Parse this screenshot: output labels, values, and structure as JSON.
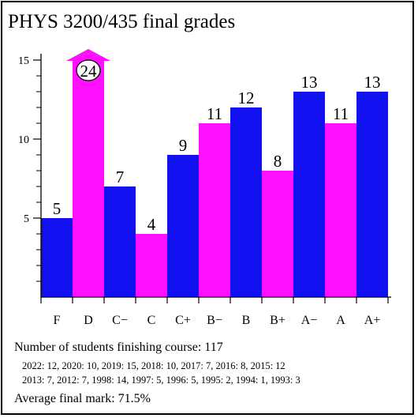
{
  "title": "PHYS 3200/435 final grades",
  "colors": {
    "blue": "#1010f0",
    "magenta": "#ff10ff",
    "axis": "#000000"
  },
  "chart_data": {
    "type": "bar",
    "title": "PHYS 3200/435 final grades",
    "categories": [
      "F",
      "D",
      "C−",
      "C",
      "C+",
      "B−",
      "B",
      "B+",
      "A−",
      "A",
      "A+"
    ],
    "values": [
      5,
      24,
      7,
      4,
      9,
      11,
      12,
      8,
      13,
      11,
      13
    ],
    "value_labels": [
      "5",
      "24",
      "7",
      "4",
      "9",
      "11",
      "12",
      "8",
      "13",
      "11",
      "13"
    ],
    "bar_colors": [
      "blue",
      "magenta",
      "blue",
      "magenta",
      "blue",
      "magenta",
      "blue",
      "magenta",
      "blue",
      "magenta",
      "blue"
    ],
    "clipped": [
      false,
      true,
      false,
      false,
      false,
      false,
      false,
      false,
      false,
      false,
      false
    ],
    "ylim": [
      0,
      15
    ],
    "yticks_major": [
      5,
      10,
      15
    ],
    "yticks_minor": [
      1,
      2,
      3,
      4,
      6,
      7,
      8,
      9,
      11,
      12,
      13,
      14
    ],
    "xlabel": "",
    "ylabel": "",
    "grid": false
  },
  "info": {
    "students_line": "Number of students finishing course: 117",
    "history_line_1": "2022: 12, 2020: 10, 2019: 15, 2018: 10, 2017: 7, 2016: 8, 2015: 12",
    "history_line_2": "2013: 7, 2012: 7, 1998: 14, 1997: 5, 1996: 5, 1995: 2, 1994: 1, 1993: 3",
    "average_line": "Average final mark: 71.5%"
  }
}
